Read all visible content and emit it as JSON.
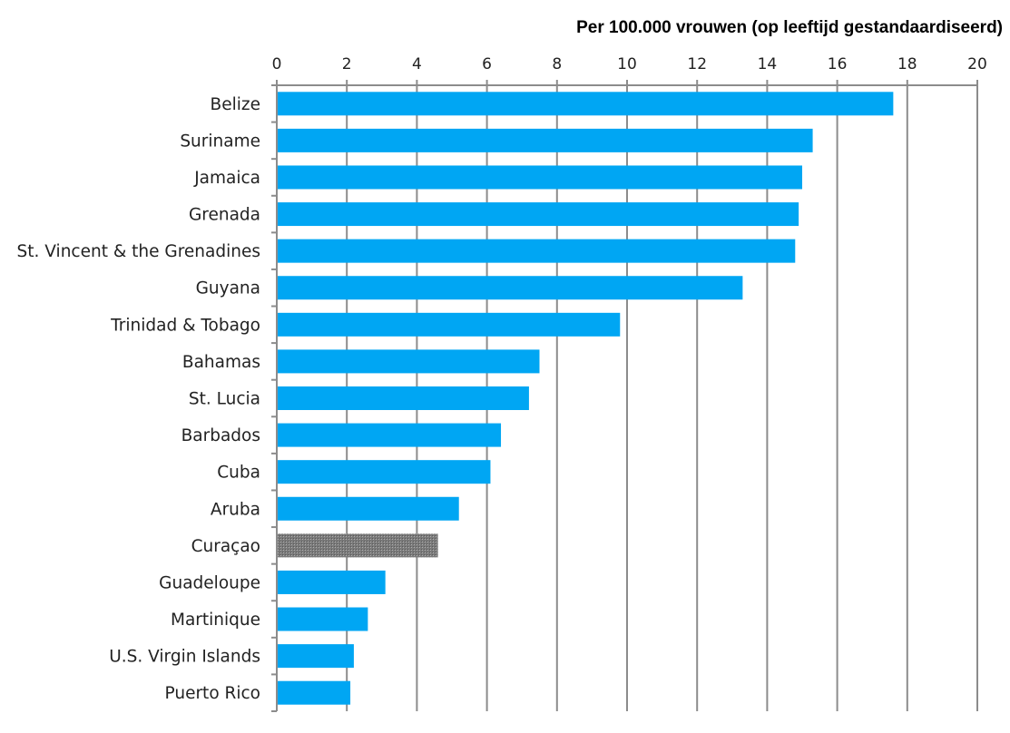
{
  "chart_data": {
    "type": "bar",
    "orientation": "horizontal",
    "xlabel": "Per 100.000 vrouwen (op leeftijd gestandaardiseerd)",
    "xlim": [
      0,
      20
    ],
    "xticks": [
      "0",
      "2",
      "4",
      "6",
      "8",
      "10",
      "12",
      "14",
      "16",
      "18",
      "20"
    ],
    "grid": true,
    "axis_position": "top",
    "categories": [
      "Belize",
      "Suriname",
      "Jamaica",
      "Grenada",
      "St. Vincent & the Grenadines",
      "Guyana",
      "Trinidad & Tobago",
      "Bahamas",
      "St. Lucia",
      "Barbados",
      "Cuba",
      "Aruba",
      "Curaçao",
      "Guadeloupe",
      "Martinique",
      "U.S. Virgin Islands",
      "Puerto Rico"
    ],
    "values": [
      17.6,
      15.3,
      15.0,
      14.9,
      14.8,
      13.3,
      9.8,
      7.5,
      7.2,
      6.4,
      6.1,
      5.2,
      4.6,
      3.1,
      2.6,
      2.2,
      2.1
    ],
    "highlight": "Curaçao",
    "colors": {
      "bar": "#00A6F3",
      "highlight": "#777777",
      "grid": "#8C8C8C"
    }
  }
}
